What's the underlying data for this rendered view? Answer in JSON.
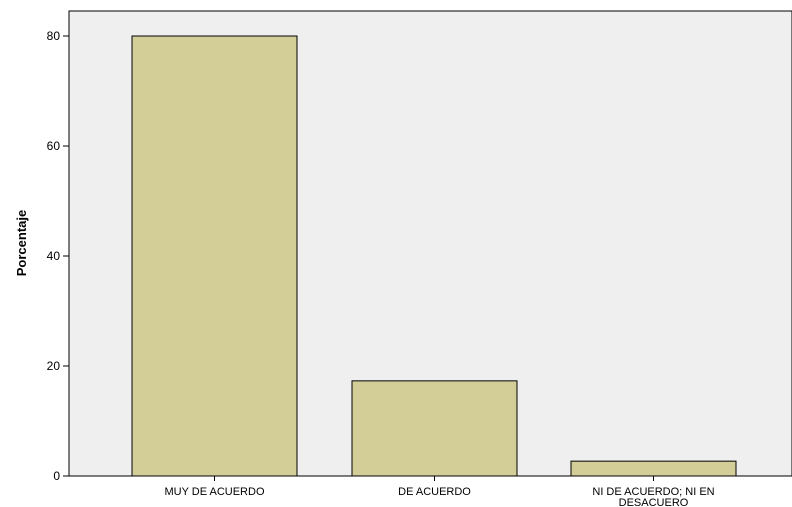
{
  "chart_data": {
    "type": "bar",
    "categories": [
      [
        "MUY DE ACUERDO"
      ],
      [
        "DE ACUERDO"
      ],
      [
        "NI DE ACUERDO; NI EN",
        "DESACUERO"
      ]
    ],
    "values": [
      80.0,
      17.3,
      2.7
    ],
    "ylabel": "Porcentaje",
    "ylim": [
      0,
      85
    ],
    "yticks": [
      "0",
      "20",
      "40",
      "60",
      "80"
    ],
    "grid": false,
    "colors": {
      "plot_background": "#efefef",
      "bar_fill": "#d3ce97",
      "bar_stroke": "#000000"
    }
  }
}
